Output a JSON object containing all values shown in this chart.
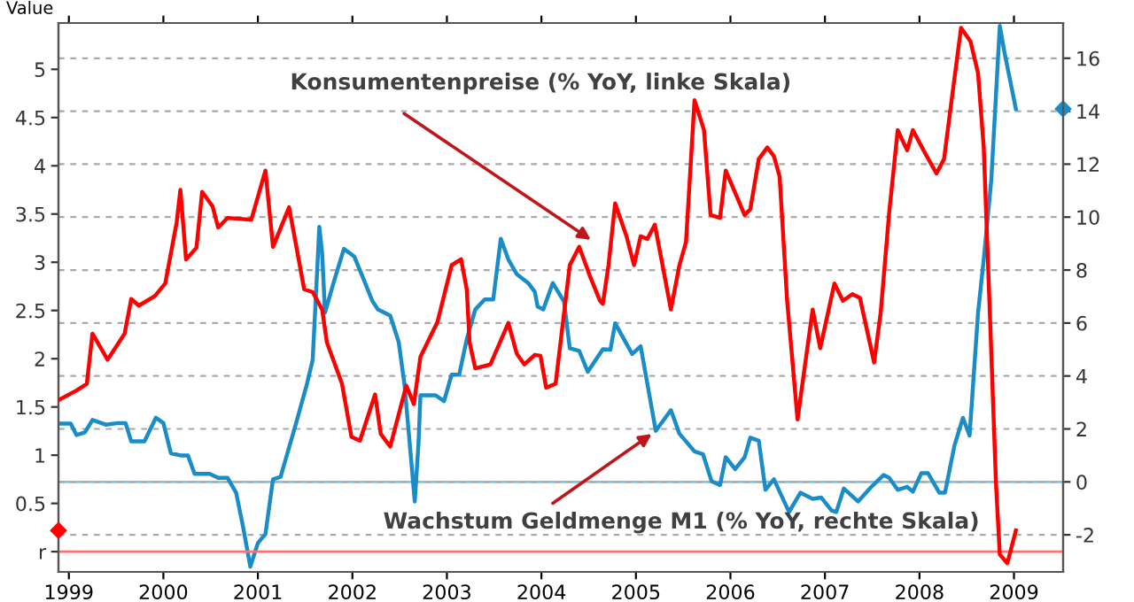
{
  "chart_data": {
    "type": "line",
    "ylabel": "Value",
    "xlim": [
      1998.89,
      2009.52
    ],
    "xticks": [
      1999,
      2000,
      2001,
      2002,
      2003,
      2004,
      2005,
      2006,
      2007,
      2008,
      2009
    ],
    "ylim": [
      -0.21,
      5.48
    ],
    "yticks": [
      {
        "value": 0,
        "label": "r"
      },
      0.5,
      1,
      1.5,
      2,
      2.5,
      3,
      3.5,
      4,
      4.5,
      5
    ],
    "y2lim": [
      -3.4,
      17.33
    ],
    "y2ticks": [
      -2,
      0,
      2,
      4,
      6,
      8,
      10,
      12,
      14,
      16
    ],
    "grid": "y",
    "series": [
      {
        "color": "#ff0000",
        "x": [
          1998.89,
          1999.08,
          1999.19,
          1999.25,
          1999.41,
          1999.59,
          1999.66,
          1999.74,
          1999.91,
          2000.02,
          2000.14,
          2000.18,
          2000.24,
          2000.35,
          2000.41,
          2000.52,
          2000.58,
          2000.68,
          2000.93,
          2001.08,
          2001.16,
          2001.33,
          2001.49,
          2001.58,
          2001.68,
          2001.73,
          2001.89,
          2001.99,
          2002.08,
          2002.24,
          2002.3,
          2002.4,
          2002.57,
          2002.65,
          2002.72,
          2002.9,
          2003.05,
          2003.15,
          2003.21,
          2003.24,
          2003.3,
          2003.46,
          2003.65,
          2003.74,
          2003.82,
          2003.93,
          2003.99,
          2004.05,
          2004.15,
          2004.3,
          2004.4,
          2004.52,
          2004.62,
          2004.65,
          2004.71,
          2004.78,
          2004.9,
          2004.98,
          2005.05,
          2005.12,
          2005.2,
          2005.27,
          2005.37,
          2005.46,
          2005.53,
          2005.62,
          2005.72,
          2005.79,
          2005.89,
          2005.95,
          2006.15,
          2006.21,
          2006.3,
          2006.39,
          2006.46,
          2006.52,
          2006.6,
          2006.71,
          2006.77,
          2006.87,
          2006.95,
          2007.1,
          2007.19,
          2007.29,
          2007.37,
          2007.52,
          2007.59,
          2007.68,
          2007.77,
          2007.87,
          2007.93,
          2008.06,
          2008.18,
          2008.26,
          2008.34,
          2008.44,
          2008.54,
          2008.62,
          2008.68,
          2008.74,
          2008.81,
          2008.85,
          2008.93,
          2009.02
        ],
        "values": [
          1.57,
          1.67,
          1.74,
          2.26,
          1.99,
          2.26,
          2.62,
          2.55,
          2.65,
          2.78,
          3.41,
          3.75,
          3.03,
          3.15,
          3.73,
          3.58,
          3.36,
          3.46,
          3.44,
          3.95,
          3.16,
          3.57,
          2.72,
          2.69,
          2.51,
          2.17,
          1.74,
          1.19,
          1.15,
          1.63,
          1.22,
          1.09,
          1.72,
          1.53,
          2.02,
          2.38,
          2.97,
          3.03,
          2.72,
          2.17,
          1.9,
          1.94,
          2.37,
          2.05,
          1.94,
          2.04,
          2.03,
          1.7,
          1.74,
          2.97,
          3.16,
          2.84,
          2.6,
          2.57,
          2.97,
          3.61,
          3.27,
          2.97,
          3.27,
          3.24,
          3.39,
          3.03,
          2.51,
          2.97,
          3.21,
          4.68,
          4.37,
          3.49,
          3.46,
          3.95,
          3.49,
          3.55,
          4.07,
          4.19,
          4.1,
          3.89,
          2.6,
          1.37,
          1.8,
          2.51,
          2.11,
          2.78,
          2.6,
          2.67,
          2.63,
          1.96,
          2.48,
          3.52,
          4.37,
          4.16,
          4.37,
          4.13,
          3.92,
          4.07,
          4.68,
          5.43,
          5.29,
          4.96,
          4.19,
          2.6,
          0.7,
          -0.03,
          -0.12,
          0.22
        ]
      },
      {
        "color": "#1a8cc8",
        "axis": "y2",
        "x": [
          1998.89,
          1999.02,
          1999.08,
          1999.17,
          1999.25,
          1999.39,
          1999.52,
          1999.6,
          1999.66,
          1999.8,
          1999.92,
          2000.0,
          2000.08,
          2000.18,
          2000.26,
          2000.33,
          2000.49,
          2000.58,
          2000.68,
          2000.77,
          2000.84,
          2000.92,
          2001.0,
          2001.08,
          2001.16,
          2001.24,
          2001.4,
          2001.52,
          2001.58,
          2001.65,
          2001.68,
          2001.71,
          2001.8,
          2001.91,
          2002.02,
          2002.11,
          2002.21,
          2002.27,
          2002.4,
          2002.49,
          2002.55,
          2002.6,
          2002.66,
          2002.7,
          2002.72,
          2002.88,
          2002.97,
          2003.05,
          2003.13,
          2003.21,
          2003.3,
          2003.4,
          2003.49,
          2003.57,
          2003.65,
          2003.74,
          2003.86,
          2003.93,
          2003.96,
          2004.02,
          2004.12,
          2004.24,
          2004.3,
          2004.4,
          2004.49,
          2004.65,
          2004.73,
          2004.78,
          2004.96,
          2005.05,
          2005.21,
          2005.37,
          2005.46,
          2005.62,
          2005.71,
          2005.8,
          2005.89,
          2005.95,
          2006.05,
          2006.15,
          2006.21,
          2006.3,
          2006.37,
          2006.46,
          2006.62,
          2006.74,
          2006.87,
          2006.96,
          2007.07,
          2007.12,
          2007.2,
          2007.35,
          2007.49,
          2007.62,
          2007.68,
          2007.77,
          2007.87,
          2007.93,
          2008.02,
          2008.09,
          2008.21,
          2008.27,
          2008.37,
          2008.46,
          2008.53,
          2008.62,
          2008.68,
          2008.76,
          2008.85,
          2008.9,
          2009.02
        ],
        "values": [
          2.2,
          2.2,
          1.77,
          1.87,
          2.34,
          2.16,
          2.22,
          2.22,
          1.53,
          1.53,
          2.42,
          2.22,
          1.08,
          1.0,
          1.0,
          0.3,
          0.3,
          0.15,
          0.15,
          -0.41,
          -1.64,
          -3.2,
          -2.31,
          -1.97,
          0.1,
          0.19,
          2.16,
          3.71,
          4.61,
          9.63,
          8.63,
          6.39,
          7.51,
          8.8,
          8.51,
          7.73,
          6.84,
          6.51,
          6.28,
          5.28,
          3.71,
          1.71,
          -0.74,
          1.49,
          3.27,
          3.27,
          3.05,
          4.05,
          4.05,
          5.39,
          6.51,
          6.89,
          6.89,
          9.18,
          8.4,
          7.84,
          7.51,
          7.18,
          6.62,
          6.51,
          7.51,
          6.8,
          5.05,
          4.95,
          4.16,
          5.01,
          4.99,
          5.99,
          4.83,
          5.12,
          1.93,
          2.71,
          1.82,
          1.15,
          1.04,
          0.03,
          -0.12,
          0.93,
          0.48,
          0.93,
          1.67,
          1.55,
          -0.3,
          0.1,
          -1.14,
          -0.41,
          -0.64,
          -0.59,
          -1.08,
          -1.14,
          -0.25,
          -0.74,
          -0.19,
          0.26,
          0.15,
          -0.3,
          -0.19,
          -0.37,
          0.33,
          0.33,
          -0.41,
          -0.41,
          1.37,
          2.42,
          1.75,
          6.39,
          8.4,
          11.41,
          17.22,
          16.21,
          14.09
        ]
      }
    ],
    "ref_lines": [
      {
        "axis": "y2",
        "value": 0,
        "color": "#7cc4e8"
      },
      {
        "axis": "y",
        "value": 0,
        "color": "#ff7070"
      }
    ],
    "annotations": [
      "Konsumentenpreise (% YoY, linke Skala)",
      {
        "text": "Wachstum Geldmenge M1 (% YoY, rechte Skala)",
        "x": 2005.21,
        "y": 1.25
      }
    ]
  }
}
